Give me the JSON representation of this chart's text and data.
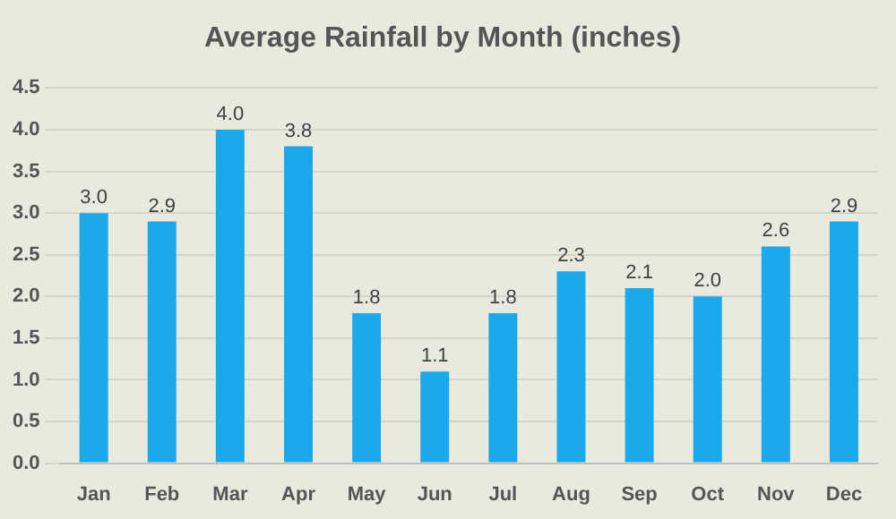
{
  "chart_data": {
    "type": "bar",
    "title": "Average Rainfall by Month (inches)",
    "categories": [
      "Jan",
      "Feb",
      "Mar",
      "Apr",
      "May",
      "Jun",
      "Jul",
      "Aug",
      "Sep",
      "Oct",
      "Nov",
      "Dec"
    ],
    "values": [
      3.0,
      2.9,
      4.0,
      3.8,
      1.8,
      1.1,
      1.8,
      2.3,
      2.1,
      2.0,
      2.6,
      2.9
    ],
    "value_labels": [
      "3.0",
      "2.9",
      "4.0",
      "3.8",
      "1.8",
      "1.1",
      "1.8",
      "2.3",
      "2.1",
      "2.0",
      "2.6",
      "2.9"
    ],
    "color": "#1aa9ea",
    "ylim": [
      0,
      4.5
    ],
    "yticks": [
      {
        "value": 0,
        "label": "0.0"
      },
      {
        "value": 0.5,
        "label": "0.5"
      },
      {
        "value": 1,
        "label": "1.0"
      },
      {
        "value": 1.5,
        "label": "1.5"
      },
      {
        "value": 2,
        "label": "2.0"
      },
      {
        "value": 2.5,
        "label": "2.5"
      },
      {
        "value": 3,
        "label": "3.0"
      },
      {
        "value": 3.5,
        "label": "3.5"
      },
      {
        "value": 4,
        "label": "4.0"
      },
      {
        "value": 4.5,
        "label": "4.5"
      }
    ],
    "grid": "y",
    "legend": false
  }
}
